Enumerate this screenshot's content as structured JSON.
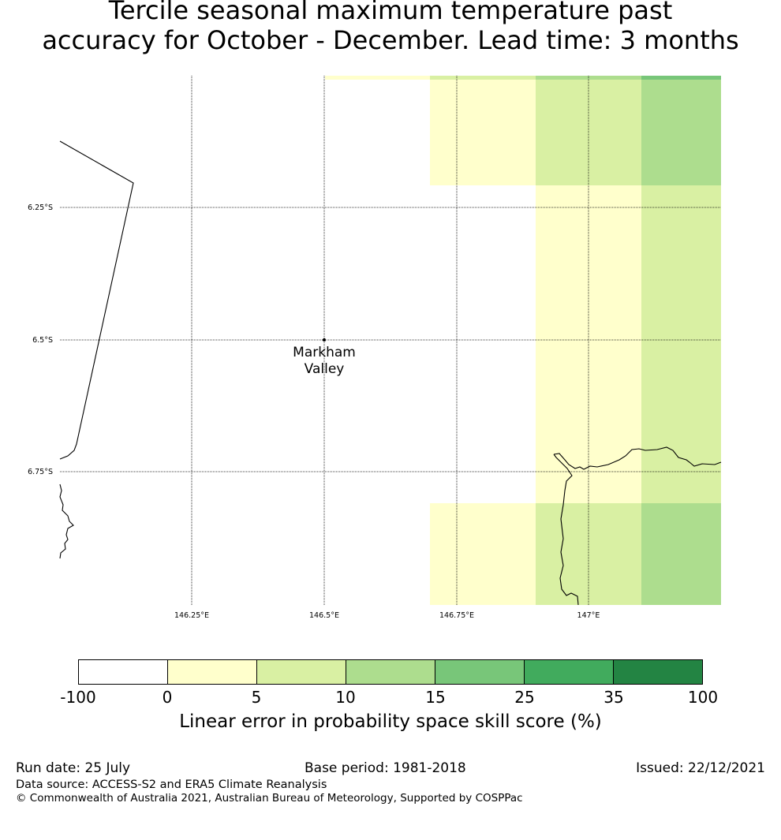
{
  "title_line1": "Tercile seasonal maximum temperature past",
  "title_line2": "accuracy for October - December. Lead time: 3 months",
  "map": {
    "lon_labels": [
      "146.25°E",
      "146.5°E",
      "146.75°E",
      "147°E"
    ],
    "lat_labels": [
      "6.25°S",
      "6.5°S",
      "6.75°S"
    ],
    "location": {
      "name_line1": "Markham",
      "name_line2": "Valley"
    },
    "grid_colors": {
      "white": "#ffffff",
      "yellow": "#ffffcc",
      "light_green": "#d9f0a3",
      "green": "#addd8e",
      "mid_green": "#78c679"
    }
  },
  "colorbar": {
    "colors": [
      "#ffffff",
      "#ffffcc",
      "#d9f0a3",
      "#addd8e",
      "#78c679",
      "#41ab5d",
      "#238443"
    ],
    "ticks": [
      "-100",
      "0",
      "5",
      "10",
      "15",
      "25",
      "35",
      "100"
    ],
    "label": "Linear error in probability space skill score (%)"
  },
  "footer": {
    "run_date": "Run date: 25 July",
    "base_period": "Base period: 1981-2018",
    "issued": "Issued: 22/12/2021",
    "data_source": "Data source: ACCESS-S2 and ERA5 Climate Reanalysis",
    "copyright": "© Commonwealth of Australia 2021, Australian Bureau of Meteorology, Supported by COSPPac"
  }
}
